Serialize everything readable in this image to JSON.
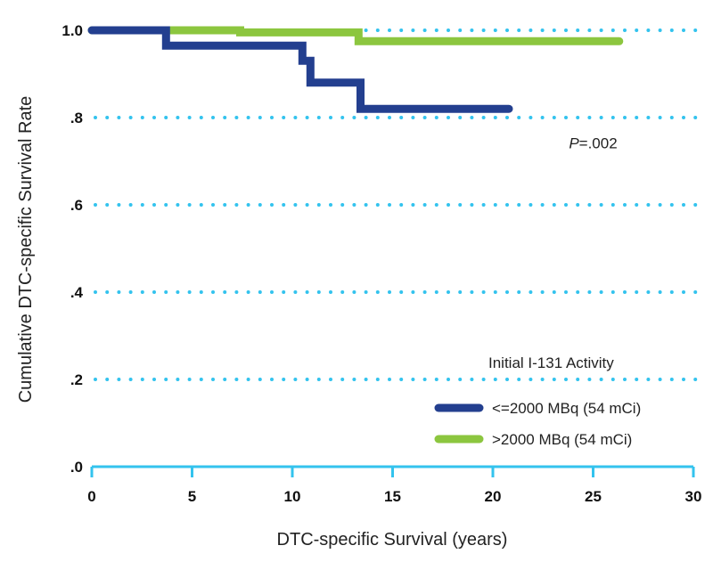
{
  "chart_data": {
    "type": "line",
    "subtype": "kaplan-meier-step",
    "xlabel": "DTC-specific Survival (years)",
    "ylabel": "Cumulative DTC-specific Survival Rate",
    "xlim": [
      0,
      30
    ],
    "ylim": [
      0,
      1.0
    ],
    "x_ticks": [
      {
        "value": 0,
        "label": "0"
      },
      {
        "value": 5,
        "label": "5"
      },
      {
        "value": 10,
        "label": "10"
      },
      {
        "value": 15,
        "label": "15"
      },
      {
        "value": 20,
        "label": "20"
      },
      {
        "value": 25,
        "label": "25"
      },
      {
        "value": 30,
        "label": "30"
      }
    ],
    "y_ticks": [
      {
        "value": 0.0,
        "label": ".0"
      },
      {
        "value": 0.2,
        "label": ".2"
      },
      {
        "value": 0.4,
        "label": ".4"
      },
      {
        "value": 0.6,
        "label": ".6"
      },
      {
        "value": 0.8,
        "label": ".8"
      },
      {
        "value": 1.0,
        "label": "1.0"
      }
    ],
    "grid": "horizontal-dotted",
    "annotation": {
      "italic": "P",
      "rest": "=.002",
      "x": 25,
      "y": 0.73
    },
    "legend": {
      "title": "Initial I-131 Activity",
      "placement": "bottom-right"
    },
    "series": [
      {
        "name": "<=2000 MBq (54 mCi)",
        "color": "#233f8f",
        "steps": [
          [
            0,
            1.0
          ],
          [
            3.7,
            1.0
          ],
          [
            3.7,
            0.965
          ],
          [
            10.5,
            0.965
          ],
          [
            10.5,
            0.93
          ],
          [
            10.9,
            0.93
          ],
          [
            10.9,
            0.88
          ],
          [
            13.4,
            0.88
          ],
          [
            13.4,
            0.82
          ],
          [
            20.8,
            0.82
          ]
        ]
      },
      {
        "name": ">2000 MBq (54 mCi)",
        "color": "#8cc63f",
        "steps": [
          [
            0,
            1.0
          ],
          [
            7.4,
            1.0
          ],
          [
            7.4,
            0.995
          ],
          [
            13.3,
            0.995
          ],
          [
            13.3,
            0.975
          ],
          [
            26.3,
            0.975
          ]
        ]
      }
    ]
  }
}
